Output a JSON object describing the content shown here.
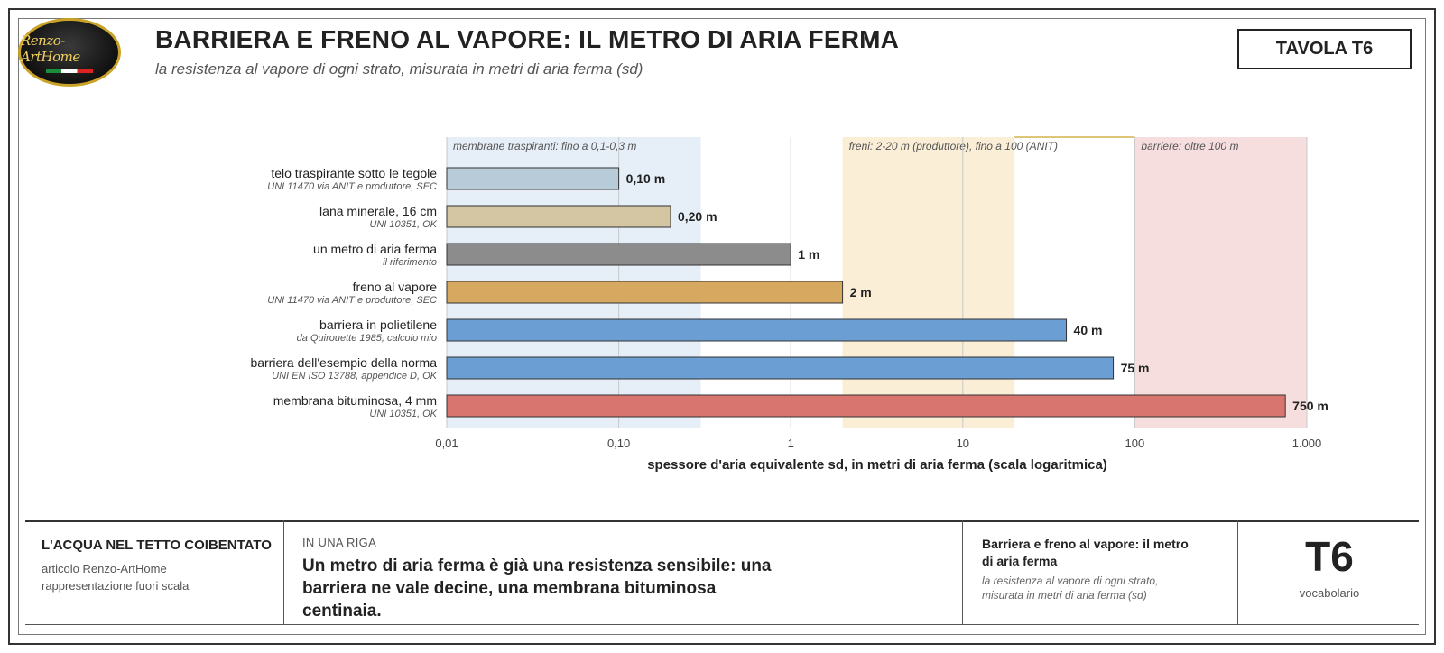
{
  "logo": {
    "text": "Renzo-ArtHome"
  },
  "header": {
    "title": "BARRIERA E FRENO AL VAPORE: IL METRO DI ARIA FERMA",
    "subtitle": "la resistenza al vapore di ogni strato, misurata in metri di aria ferma (sd)",
    "tavola": "TAVOLA T6"
  },
  "colors": {
    "zone_membrane": "#e6eef7",
    "zone_freni": "#fbeed7",
    "zone_barriere": "#f6dede",
    "zone_line": "#c9a227"
  },
  "chart_data": {
    "type": "bar",
    "orientation": "horizontal",
    "xscale": "log",
    "xlim": [
      0.01,
      1000
    ],
    "xlabel": "spessore d'aria equivalente sd, in metri di aria ferma (scala logaritmica)",
    "ylabel": "",
    "grid": true,
    "xticks": [
      {
        "value": 0.01,
        "label": "0,01"
      },
      {
        "value": 0.1,
        "label": "0,10"
      },
      {
        "value": 1,
        "label": "1"
      },
      {
        "value": 10,
        "label": "10"
      },
      {
        "value": 100,
        "label": "100"
      },
      {
        "value": 1000,
        "label": "1.000"
      }
    ],
    "zones": [
      {
        "from": 0.01,
        "to": 0.3,
        "label": "membrane traspiranti: fino a 0,1-0,3 m",
        "color": "#e6eef7"
      },
      {
        "from": 2,
        "to": 20,
        "label": "freni: 2-20 m (produttore), fino a 100 (ANIT)",
        "color": "#fbeed7"
      },
      {
        "from": 100,
        "to": 1000,
        "label": "barriere: oltre 100 m",
        "color": "#f6dede"
      }
    ],
    "zone_bracket": {
      "from": 20,
      "to": 100
    },
    "bars": [
      {
        "label": "telo traspirante sotto le tegole",
        "source": "UNI 11470 via ANIT e produttore, SEC",
        "value": 0.1,
        "value_label": "0,10 m",
        "color": "#b8cbd8"
      },
      {
        "label": "lana minerale, 16 cm",
        "source": "UNI 10351, OK",
        "value": 0.2,
        "value_label": "0,20 m",
        "color": "#d4c6a2"
      },
      {
        "label": "un metro di aria ferma",
        "source": "il riferimento",
        "value": 1,
        "value_label": "1 m",
        "color": "#8c8c8c"
      },
      {
        "label": "freno al vapore",
        "source": "UNI 11470 via ANIT e produttore, SEC",
        "value": 2,
        "value_label": "2 m",
        "color": "#d6a860"
      },
      {
        "label": "barriera in polietilene",
        "source": "da Quirouette 1985, calcolo mio",
        "value": 40,
        "value_label": "40 m",
        "color": "#6b9fd3"
      },
      {
        "label": "barriera dell'esempio della norma",
        "source": "UNI EN ISO 13788, appendice D, OK",
        "value": 75,
        "value_label": "75 m",
        "color": "#6b9fd3"
      },
      {
        "label": "membrana bituminosa, 4 mm",
        "source": "UNI 10351, OK",
        "value": 750,
        "value_label": "750 m",
        "color": "#d7756e"
      }
    ]
  },
  "footer": {
    "series": "L'ACQUA NEL TETTO COIBENTATO",
    "line1": "articolo Renzo-ArtHome",
    "line2": "rappresentazione fuori scala",
    "kicker": "IN UNA RIGA",
    "headline": "Un metro di aria ferma è già una resistenza sensibile: una barriera ne vale decine, una membrana bituminosa centinaia.",
    "right_title": "Barriera e freno al vapore: il metro di aria ferma",
    "right_subtitle": "la resistenza al vapore di ogni strato, misurata in metri di aria ferma (sd)",
    "code": "T6",
    "code_label": "vocabolario"
  }
}
